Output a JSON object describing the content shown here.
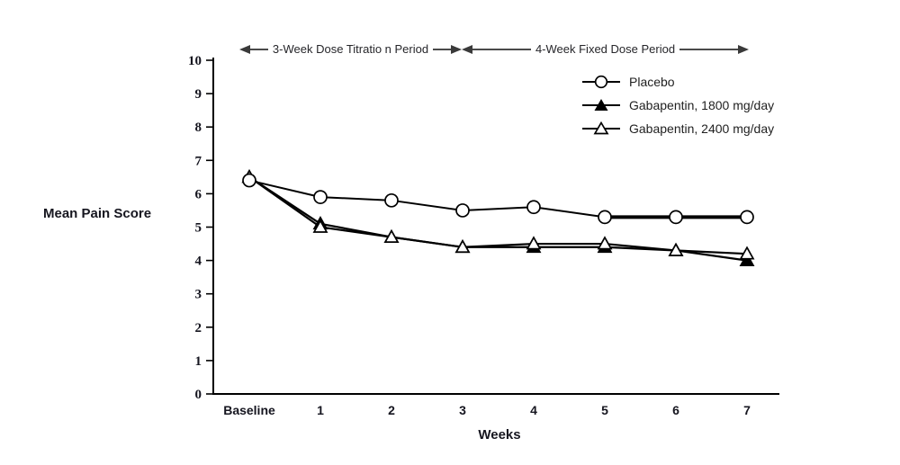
{
  "figure": {
    "y_axis_title": "Mean Pain Score",
    "x_axis_title": "Weeks"
  },
  "chart_data": {
    "type": "line",
    "title": "",
    "xlabel": "Weeks",
    "ylabel": "Mean Pain Score",
    "categories": [
      "Baseline",
      "1",
      "2",
      "3",
      "4",
      "5",
      "6",
      "7"
    ],
    "y_ticks": [
      0,
      1,
      2,
      3,
      4,
      5,
      6,
      7,
      8,
      9,
      10
    ],
    "ylim": [
      0,
      10
    ],
    "grid": false,
    "legend_position": "top-right",
    "series": [
      {
        "name": "Placebo",
        "marker": "open-circle",
        "color": "#000000",
        "values": [
          6.4,
          5.9,
          5.8,
          5.5,
          5.6,
          5.3,
          5.3,
          5.3
        ]
      },
      {
        "name": "Gabapentin, 1800 mg/day",
        "marker": "filled-triangle",
        "color": "#000000",
        "values": [
          6.5,
          5.1,
          4.7,
          4.4,
          4.4,
          4.4,
          4.3,
          4.0
        ]
      },
      {
        "name": "Gabapentin, 2400 mg/day",
        "marker": "open-triangle",
        "color": "#000000",
        "values": [
          6.5,
          5.0,
          4.7,
          4.4,
          4.5,
          4.5,
          4.3,
          4.2
        ]
      }
    ],
    "annotations": [
      {
        "label": "3-Week Dose Titratio n Period",
        "x_start": "Baseline",
        "x_end": "3"
      },
      {
        "label": "4-Week Fixed Dose Period",
        "x_start": "3",
        "x_end": "7"
      }
    ],
    "colors": {
      "line": "#000000",
      "axis": "#000000",
      "tick_text": "#15151f",
      "annotation_arrow": "#3a3a3a"
    }
  }
}
